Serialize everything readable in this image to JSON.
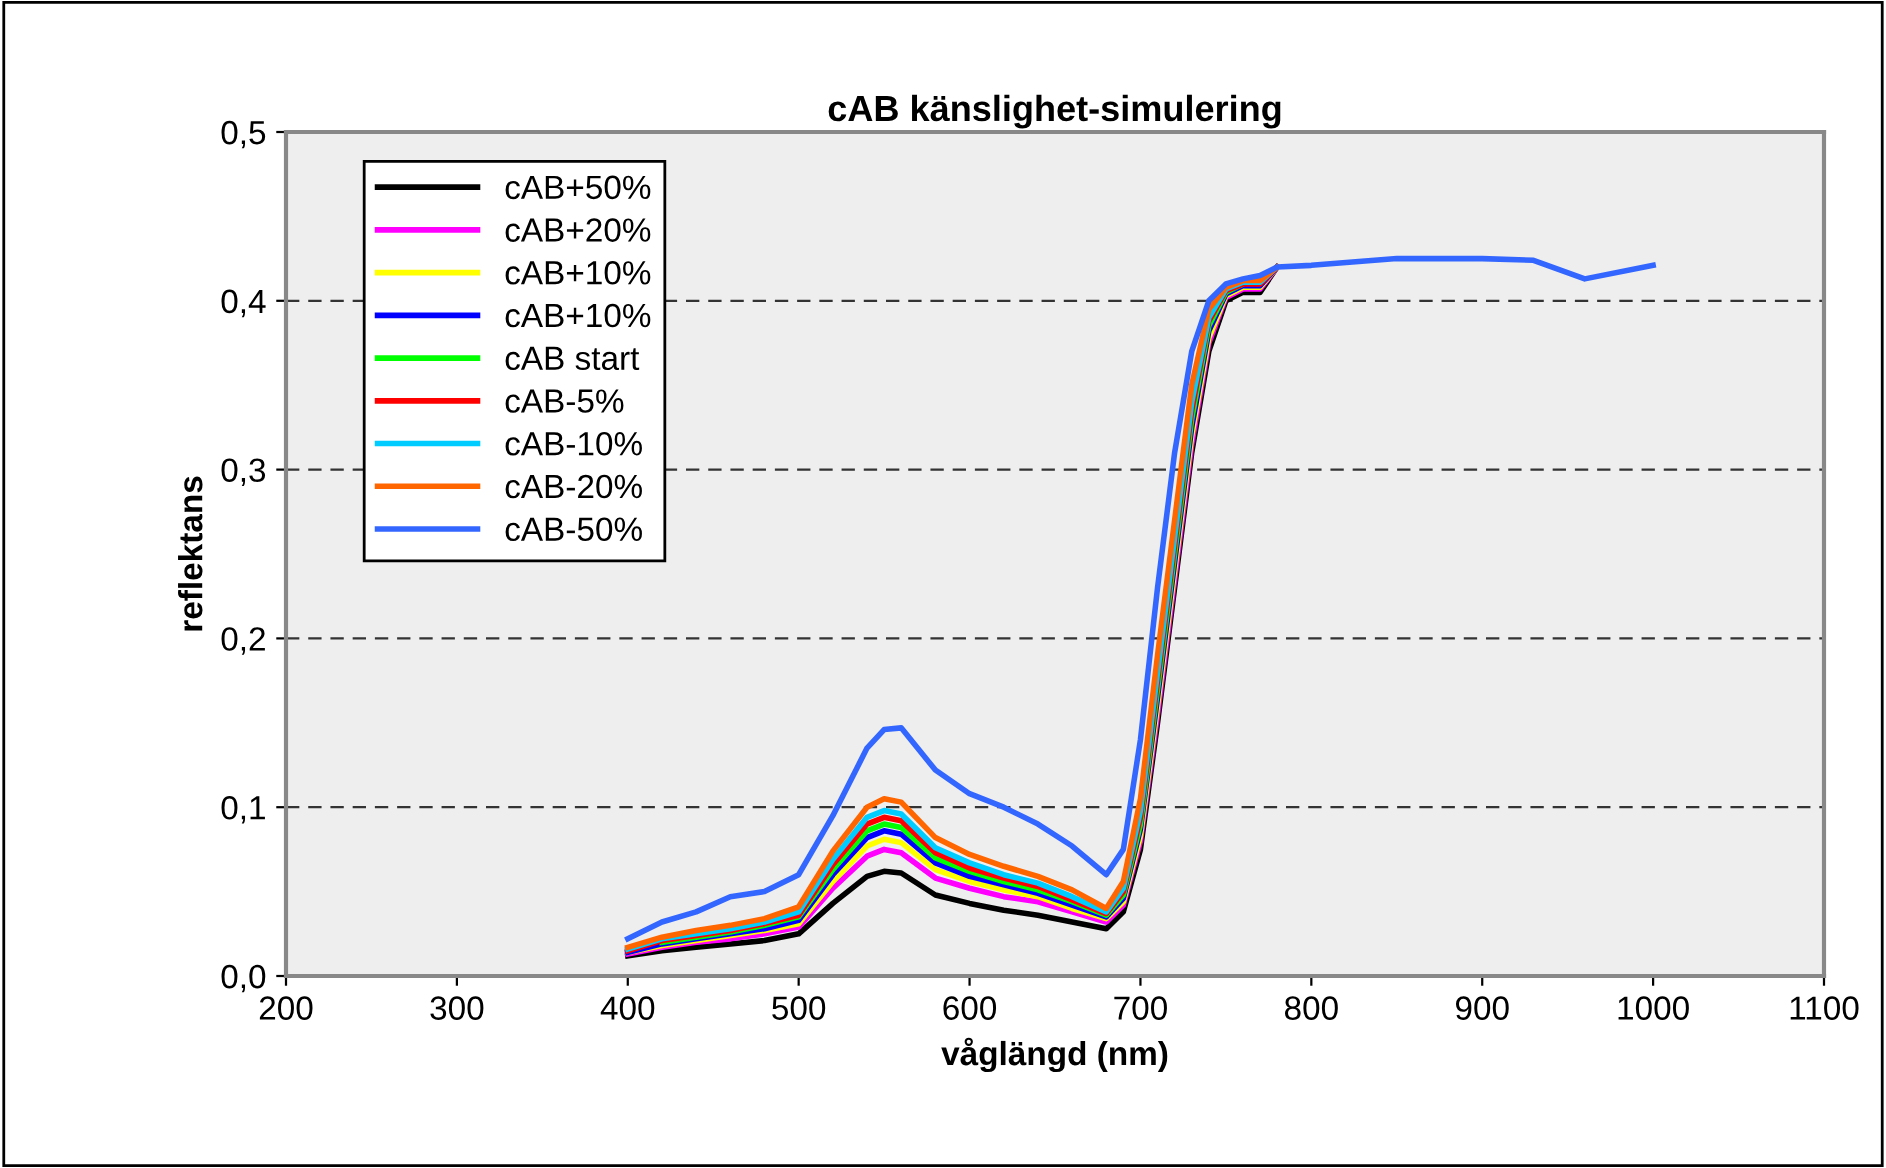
{
  "chart_data": {
    "type": "line",
    "title": "cAB känslighet-simulering",
    "xlabel": "våglängd (nm)",
    "ylabel": "reflektans",
    "x": [
      400,
      420,
      440,
      460,
      480,
      500,
      520,
      540,
      550,
      560,
      580,
      600,
      620,
      640,
      660,
      680,
      690,
      700,
      710,
      720,
      730,
      740,
      750,
      760,
      770,
      780,
      800,
      850,
      900,
      930,
      960,
      1000
    ],
    "series": [
      {
        "name": "cAB+50%",
        "color": "#000000",
        "values": [
          0.012,
          0.015,
          0.017,
          0.019,
          0.021,
          0.025,
          0.043,
          0.059,
          0.062,
          0.061,
          0.048,
          0.043,
          0.039,
          0.036,
          0.032,
          0.028,
          0.038,
          0.075,
          0.15,
          0.23,
          0.31,
          0.37,
          0.4,
          0.405,
          0.405,
          0.42,
          null,
          null,
          null,
          null,
          null,
          null
        ]
      },
      {
        "name": "cAB+20%",
        "color": "#ff00ff",
        "values": [
          0.013,
          0.017,
          0.02,
          0.022,
          0.025,
          0.029,
          0.052,
          0.071,
          0.075,
          0.073,
          0.058,
          0.052,
          0.047,
          0.044,
          0.038,
          0.032,
          0.042,
          0.08,
          0.155,
          0.235,
          0.315,
          0.375,
          0.402,
          0.407,
          0.407,
          0.42,
          null,
          null,
          null,
          null,
          null,
          null
        ]
      },
      {
        "name": "cAB+10%",
        "color": "#ffff00",
        "values": [
          0.014,
          0.018,
          0.021,
          0.024,
          0.027,
          0.031,
          0.056,
          0.077,
          0.081,
          0.079,
          0.063,
          0.056,
          0.051,
          0.047,
          0.04,
          0.034,
          0.044,
          0.083,
          0.16,
          0.24,
          0.32,
          0.378,
          0.403,
          0.408,
          0.408,
          0.42,
          null,
          null,
          null,
          null,
          null,
          null
        ]
      },
      {
        "name": "cAB+10%",
        "color": "#0000ff",
        "values": [
          0.014,
          0.019,
          0.022,
          0.025,
          0.028,
          0.033,
          0.06,
          0.082,
          0.086,
          0.084,
          0.067,
          0.059,
          0.054,
          0.049,
          0.042,
          0.035,
          0.046,
          0.087,
          0.165,
          0.245,
          0.325,
          0.382,
          0.404,
          0.409,
          0.409,
          0.42,
          null,
          null,
          null,
          null,
          null,
          null
        ]
      },
      {
        "name": "cAB start",
        "color": "#00ff00",
        "values": [
          null,
          0.02,
          0.023,
          0.026,
          0.03,
          0.035,
          0.063,
          0.086,
          0.09,
          0.088,
          0.07,
          0.062,
          0.056,
          0.051,
          0.044,
          0.036,
          0.048,
          0.09,
          0.17,
          0.25,
          0.33,
          0.385,
          0.405,
          0.41,
          null,
          null,
          null,
          null,
          null,
          null,
          null,
          null
        ]
      },
      {
        "name": "cAB-5%",
        "color": "#ff0000",
        "values": [
          0.015,
          0.021,
          0.024,
          0.027,
          0.031,
          0.036,
          0.066,
          0.09,
          0.094,
          0.092,
          0.073,
          0.064,
          0.058,
          0.053,
          0.045,
          0.037,
          0.05,
          0.094,
          0.175,
          0.255,
          0.335,
          0.388,
          0.406,
          0.41,
          0.41,
          0.42,
          null,
          null,
          null,
          null,
          null,
          null
        ]
      },
      {
        "name": "cAB-10%",
        "color": "#00ccff",
        "values": [
          0.016,
          0.022,
          0.025,
          0.028,
          0.032,
          0.038,
          0.069,
          0.094,
          0.098,
          0.096,
          0.076,
          0.067,
          0.06,
          0.055,
          0.047,
          0.038,
          0.052,
          0.098,
          0.18,
          0.26,
          0.34,
          0.39,
          0.407,
          0.411,
          0.411,
          0.42,
          null,
          null,
          null,
          null,
          null,
          null
        ]
      },
      {
        "name": "cAB-20%",
        "color": "#ff6600",
        "values": [
          0.017,
          0.023,
          0.027,
          0.03,
          0.034,
          0.041,
          0.074,
          0.1,
          0.105,
          0.103,
          0.082,
          0.072,
          0.065,
          0.059,
          0.051,
          0.04,
          0.056,
          0.105,
          0.19,
          0.27,
          0.35,
          0.395,
          0.408,
          0.412,
          0.412,
          0.42,
          null,
          null,
          null,
          null,
          null,
          null
        ]
      },
      {
        "name": "cAB-50%",
        "color": "#3366ff",
        "values": [
          0.022,
          0.032,
          0.038,
          0.047,
          0.05,
          0.06,
          0.095,
          0.135,
          0.146,
          0.147,
          0.122,
          0.108,
          0.1,
          0.09,
          0.077,
          0.06,
          0.075,
          0.14,
          0.23,
          0.31,
          0.37,
          0.4,
          0.41,
          0.413,
          0.415,
          0.42,
          0.421,
          0.425,
          0.425,
          0.424,
          0.413,
          0.421
        ]
      }
    ],
    "xlim": [
      200,
      1100
    ],
    "xticks": [
      200,
      300,
      400,
      500,
      600,
      700,
      800,
      900,
      1000,
      1100
    ],
    "ylim": [
      0,
      0.5
    ],
    "yticks": [
      {
        "value": 0,
        "label": "0,0"
      },
      {
        "value": 0.1,
        "label": "0,1"
      },
      {
        "value": 0.2,
        "label": "0,2"
      },
      {
        "value": 0.3,
        "label": "0,3"
      },
      {
        "value": 0.4,
        "label": "0,4"
      },
      {
        "value": 0.5,
        "label": "0,5"
      }
    ],
    "grid": "y",
    "legend": "top left",
    "line_style": "solid",
    "marker": "none"
  }
}
